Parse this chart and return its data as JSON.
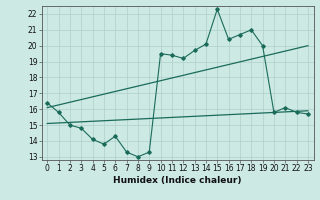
{
  "xlabel": "Humidex (Indice chaleur)",
  "bg_color": "#cce9e4",
  "line_color": "#1a6b5a",
  "grid_color": "#b0d0cc",
  "xlim": [
    -0.5,
    23.5
  ],
  "ylim": [
    12.8,
    22.5
  ],
  "xticks": [
    0,
    1,
    2,
    3,
    4,
    5,
    6,
    7,
    8,
    9,
    10,
    11,
    12,
    13,
    14,
    15,
    16,
    17,
    18,
    19,
    20,
    21,
    22,
    23
  ],
  "yticks": [
    13,
    14,
    15,
    16,
    17,
    18,
    19,
    20,
    21,
    22
  ],
  "main_line_x": [
    0,
    1,
    2,
    3,
    4,
    5,
    6,
    7,
    8,
    9,
    10,
    11,
    12,
    13,
    14,
    15,
    16,
    17,
    18,
    19,
    20,
    21,
    22,
    23
  ],
  "main_line_y": [
    16.4,
    15.8,
    15.0,
    14.8,
    14.1,
    13.8,
    14.3,
    13.3,
    13.0,
    13.3,
    19.5,
    19.4,
    19.2,
    19.7,
    20.1,
    22.3,
    20.4,
    20.7,
    21.0,
    20.0,
    15.8,
    16.1,
    15.8,
    15.7
  ],
  "upper_trend_x": [
    0,
    23
  ],
  "upper_trend_y": [
    16.1,
    20.0
  ],
  "lower_trend_x": [
    0,
    23
  ],
  "lower_trend_y": [
    15.1,
    15.9
  ],
  "font_size": 6.5,
  "tick_font_size": 5.5
}
